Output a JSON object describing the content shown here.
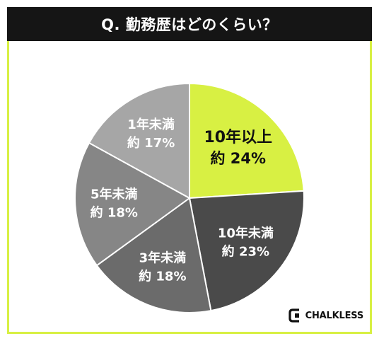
{
  "title": "Q. 勤務歴はどのくらい？",
  "brand": "CHALKLESS",
  "colors": {
    "accent": "#d8f043",
    "title_bg": "#151515",
    "border": "#d8f043"
  },
  "chart_data": {
    "type": "pie",
    "title": "Q. 勤務歴はどのくらい？",
    "start": "12 o'clock, clockwise",
    "slices": [
      {
        "label": "10年以上",
        "value": 24,
        "value_text": "約 24%",
        "color": "#d8f043",
        "text_color": "#111111"
      },
      {
        "label": "10年未満",
        "value": 23,
        "value_text": "約 23%",
        "color": "#4a4a4a",
        "text_color": "#ffffff"
      },
      {
        "label": "3年未満",
        "value": 18,
        "value_text": "約 18%",
        "color": "#6b6b6b",
        "text_color": "#ffffff"
      },
      {
        "label": "5年未満",
        "value": 18,
        "value_text": "約 18%",
        "color": "#868686",
        "text_color": "#ffffff"
      },
      {
        "label": "1年未満",
        "value": 17,
        "value_text": "約 17%",
        "color": "#a6a6a6",
        "text_color": "#ffffff"
      }
    ]
  }
}
